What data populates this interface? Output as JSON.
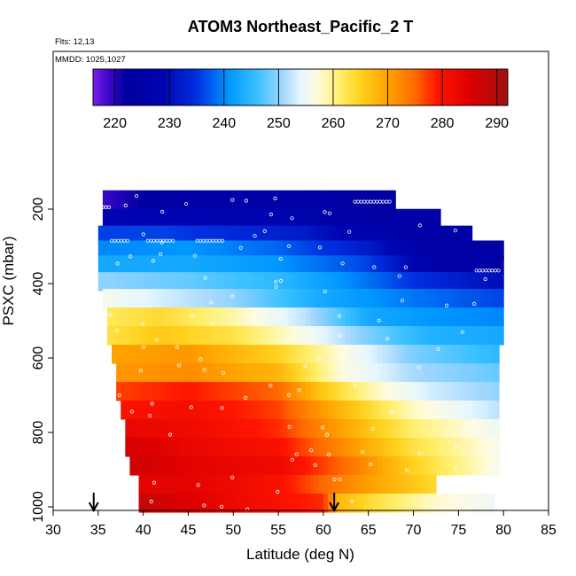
{
  "chart_data": {
    "type": "heatmap",
    "title": "ATOM3 Northeast_Pacific_2 T",
    "subtitle_lines": [
      "Flts: 12,13",
      "MMDD: 1025,1027"
    ],
    "xlabel": "Latitude (deg N)",
    "ylabel": "PSXC (mbar)",
    "xlim": [
      30,
      85
    ],
    "ylim": [
      1000,
      100
    ],
    "x_ticks": [
      30,
      35,
      40,
      45,
      50,
      55,
      60,
      65,
      70,
      75,
      80,
      85
    ],
    "y_ticks": [
      200,
      400,
      600,
      800,
      1000
    ],
    "colorbar": {
      "min": 216,
      "max": 292,
      "ticks": [
        220,
        230,
        240,
        250,
        260,
        270,
        280,
        290
      ],
      "stops": [
        {
          "v": 216,
          "c": "#7a1fe8"
        },
        {
          "v": 219,
          "c": "#3a05c8"
        },
        {
          "v": 222,
          "c": "#0000a0"
        },
        {
          "v": 229,
          "c": "#0004b0"
        },
        {
          "v": 235,
          "c": "#0030e0"
        },
        {
          "v": 241,
          "c": "#0098ff"
        },
        {
          "v": 246,
          "c": "#38c0ff"
        },
        {
          "v": 251,
          "c": "#a8d8ff"
        },
        {
          "v": 254,
          "c": "#e6f6ff"
        },
        {
          "v": 257,
          "c": "#fffbe0"
        },
        {
          "v": 261,
          "c": "#fff070"
        },
        {
          "v": 265,
          "c": "#ffd21e"
        },
        {
          "v": 270,
          "c": "#ffa200"
        },
        {
          "v": 275,
          "c": "#ff6a00"
        },
        {
          "v": 279,
          "c": "#ff1500"
        },
        {
          "v": 285,
          "c": "#dd0000"
        },
        {
          "v": 292,
          "c": "#a01010"
        }
      ]
    },
    "layers": [
      {
        "p": 175,
        "lat": [
          35.5,
          68.0
        ],
        "t": [
          [
            35.5,
            219
          ],
          [
            40,
            222
          ],
          [
            50,
            226
          ],
          [
            60,
            224
          ],
          [
            68,
            222
          ]
        ]
      },
      {
        "p": 225,
        "lat": [
          35.5,
          73.0
        ],
        "t": [
          [
            35.5,
            229
          ],
          [
            45,
            229
          ],
          [
            55,
            228
          ],
          [
            65,
            224
          ],
          [
            73,
            225
          ]
        ]
      },
      {
        "p": 270,
        "lat": [
          35.0,
          76.5
        ],
        "t": [
          [
            35,
            236
          ],
          [
            42,
            236
          ],
          [
            50,
            234
          ],
          [
            58,
            232
          ],
          [
            65,
            227
          ],
          [
            72,
            225
          ],
          [
            76.5,
            226
          ]
        ]
      },
      {
        "p": 310,
        "lat": [
          35.0,
          80.0
        ],
        "t": [
          [
            35,
            240
          ],
          [
            45,
            241
          ],
          [
            55,
            238
          ],
          [
            65,
            232
          ],
          [
            72,
            224
          ],
          [
            80,
            224
          ]
        ]
      },
      {
        "p": 350,
        "lat": [
          35.0,
          80.0
        ],
        "t": [
          [
            35,
            243
          ],
          [
            45,
            243
          ],
          [
            55,
            241
          ],
          [
            65,
            236
          ],
          [
            72,
            226
          ],
          [
            80,
            224
          ]
        ]
      },
      {
        "p": 395,
        "lat": [
          35.0,
          80.0
        ],
        "t": [
          [
            35,
            250
          ],
          [
            45,
            248
          ],
          [
            55,
            245
          ],
          [
            62,
            241
          ],
          [
            70,
            235
          ],
          [
            80,
            230
          ]
        ]
      },
      {
        "p": 440,
        "lat": [
          35.5,
          80.0
        ],
        "t": [
          [
            35.5,
            256
          ],
          [
            40,
            254
          ],
          [
            50,
            250
          ],
          [
            60,
            243
          ],
          [
            70,
            239
          ],
          [
            80,
            236
          ]
        ]
      },
      {
        "p": 490,
        "lat": [
          36.0,
          80.0
        ],
        "t": [
          [
            36,
            262
          ],
          [
            42,
            264
          ],
          [
            50,
            259
          ],
          [
            58,
            252
          ],
          [
            65,
            243
          ],
          [
            72,
            241
          ],
          [
            80,
            240
          ]
        ]
      },
      {
        "p": 540,
        "lat": [
          36.0,
          80.0
        ],
        "t": [
          [
            36,
            263
          ],
          [
            42,
            266
          ],
          [
            50,
            263
          ],
          [
            58,
            256
          ],
          [
            65,
            249
          ],
          [
            72,
            244
          ],
          [
            80,
            243
          ]
        ]
      },
      {
        "p": 590,
        "lat": [
          36.5,
          79.5
        ],
        "t": [
          [
            36.5,
            270
          ],
          [
            45,
            271
          ],
          [
            55,
            265
          ],
          [
            62,
            257
          ],
          [
            70,
            249
          ],
          [
            79.5,
            245
          ]
        ]
      },
      {
        "p": 640,
        "lat": [
          37.0,
          79.5
        ],
        "t": [
          [
            37,
            271
          ],
          [
            45,
            272
          ],
          [
            55,
            268
          ],
          [
            62,
            257
          ],
          [
            70,
            251
          ],
          [
            79.5,
            248
          ]
        ]
      },
      {
        "p": 690,
        "lat": [
          37.0,
          79.5
        ],
        "t": [
          [
            37,
            277
          ],
          [
            45,
            279
          ],
          [
            55,
            275
          ],
          [
            60,
            266
          ],
          [
            66,
            258
          ],
          [
            72,
            253
          ],
          [
            79.5,
            250
          ]
        ]
      },
      {
        "p": 740,
        "lat": [
          37.5,
          79.5
        ],
        "t": [
          [
            37.5,
            280
          ],
          [
            45,
            281
          ],
          [
            55,
            277
          ],
          [
            62,
            268
          ],
          [
            70,
            258
          ],
          [
            79.5,
            252
          ]
        ]
      },
      {
        "p": 790,
        "lat": [
          38.0,
          79.5
        ],
        "t": [
          [
            38,
            283
          ],
          [
            45,
            282
          ],
          [
            55,
            278
          ],
          [
            62,
            270
          ],
          [
            70,
            261
          ],
          [
            79.5,
            255
          ]
        ]
      },
      {
        "p": 840,
        "lat": [
          38.0,
          79.5
        ],
        "t": [
          [
            38,
            286
          ],
          [
            45,
            283
          ],
          [
            55,
            280
          ],
          [
            63,
            271
          ],
          [
            70,
            263
          ],
          [
            79.5,
            256
          ]
        ]
      },
      {
        "p": 890,
        "lat": [
          38.5,
          79.5
        ],
        "t": [
          [
            38.5,
            287
          ],
          [
            45,
            284
          ],
          [
            55,
            282
          ],
          [
            63,
            274
          ],
          [
            70,
            265
          ],
          [
            79.5,
            256
          ]
        ]
      },
      {
        "p": 940,
        "lat": [
          39.5,
          72.5
        ],
        "t": [
          [
            39.5,
            284
          ],
          [
            45,
            284
          ],
          [
            55,
            280
          ],
          [
            63,
            272
          ],
          [
            72.5,
            264
          ]
        ]
      },
      {
        "p": 990,
        "lat": [
          39.5,
          79.0
        ],
        "t": [
          [
            39.5,
            288
          ],
          [
            45,
            285
          ],
          [
            55,
            280
          ],
          [
            60,
            278
          ],
          [
            61.5,
            268
          ],
          [
            66,
            263
          ],
          [
            72,
            258
          ],
          [
            79,
            255
          ]
        ]
      }
    ],
    "sample_points": [
      {
        "p": 180,
        "lat": [
          63.5,
          67.5
        ]
      },
      {
        "p": 195,
        "lat": [
          35.5,
          36.5
        ]
      },
      {
        "p": 285,
        "lat": [
          36.5,
          38.5
        ]
      },
      {
        "p": 285,
        "lat": [
          40.5,
          43.5
        ]
      },
      {
        "p": 285,
        "lat": [
          46.0,
          49.0
        ]
      },
      {
        "p": 365,
        "lat": [
          77.0,
          79.5
        ]
      }
    ],
    "arrows_lat": [
      34.5,
      61.2
    ]
  }
}
